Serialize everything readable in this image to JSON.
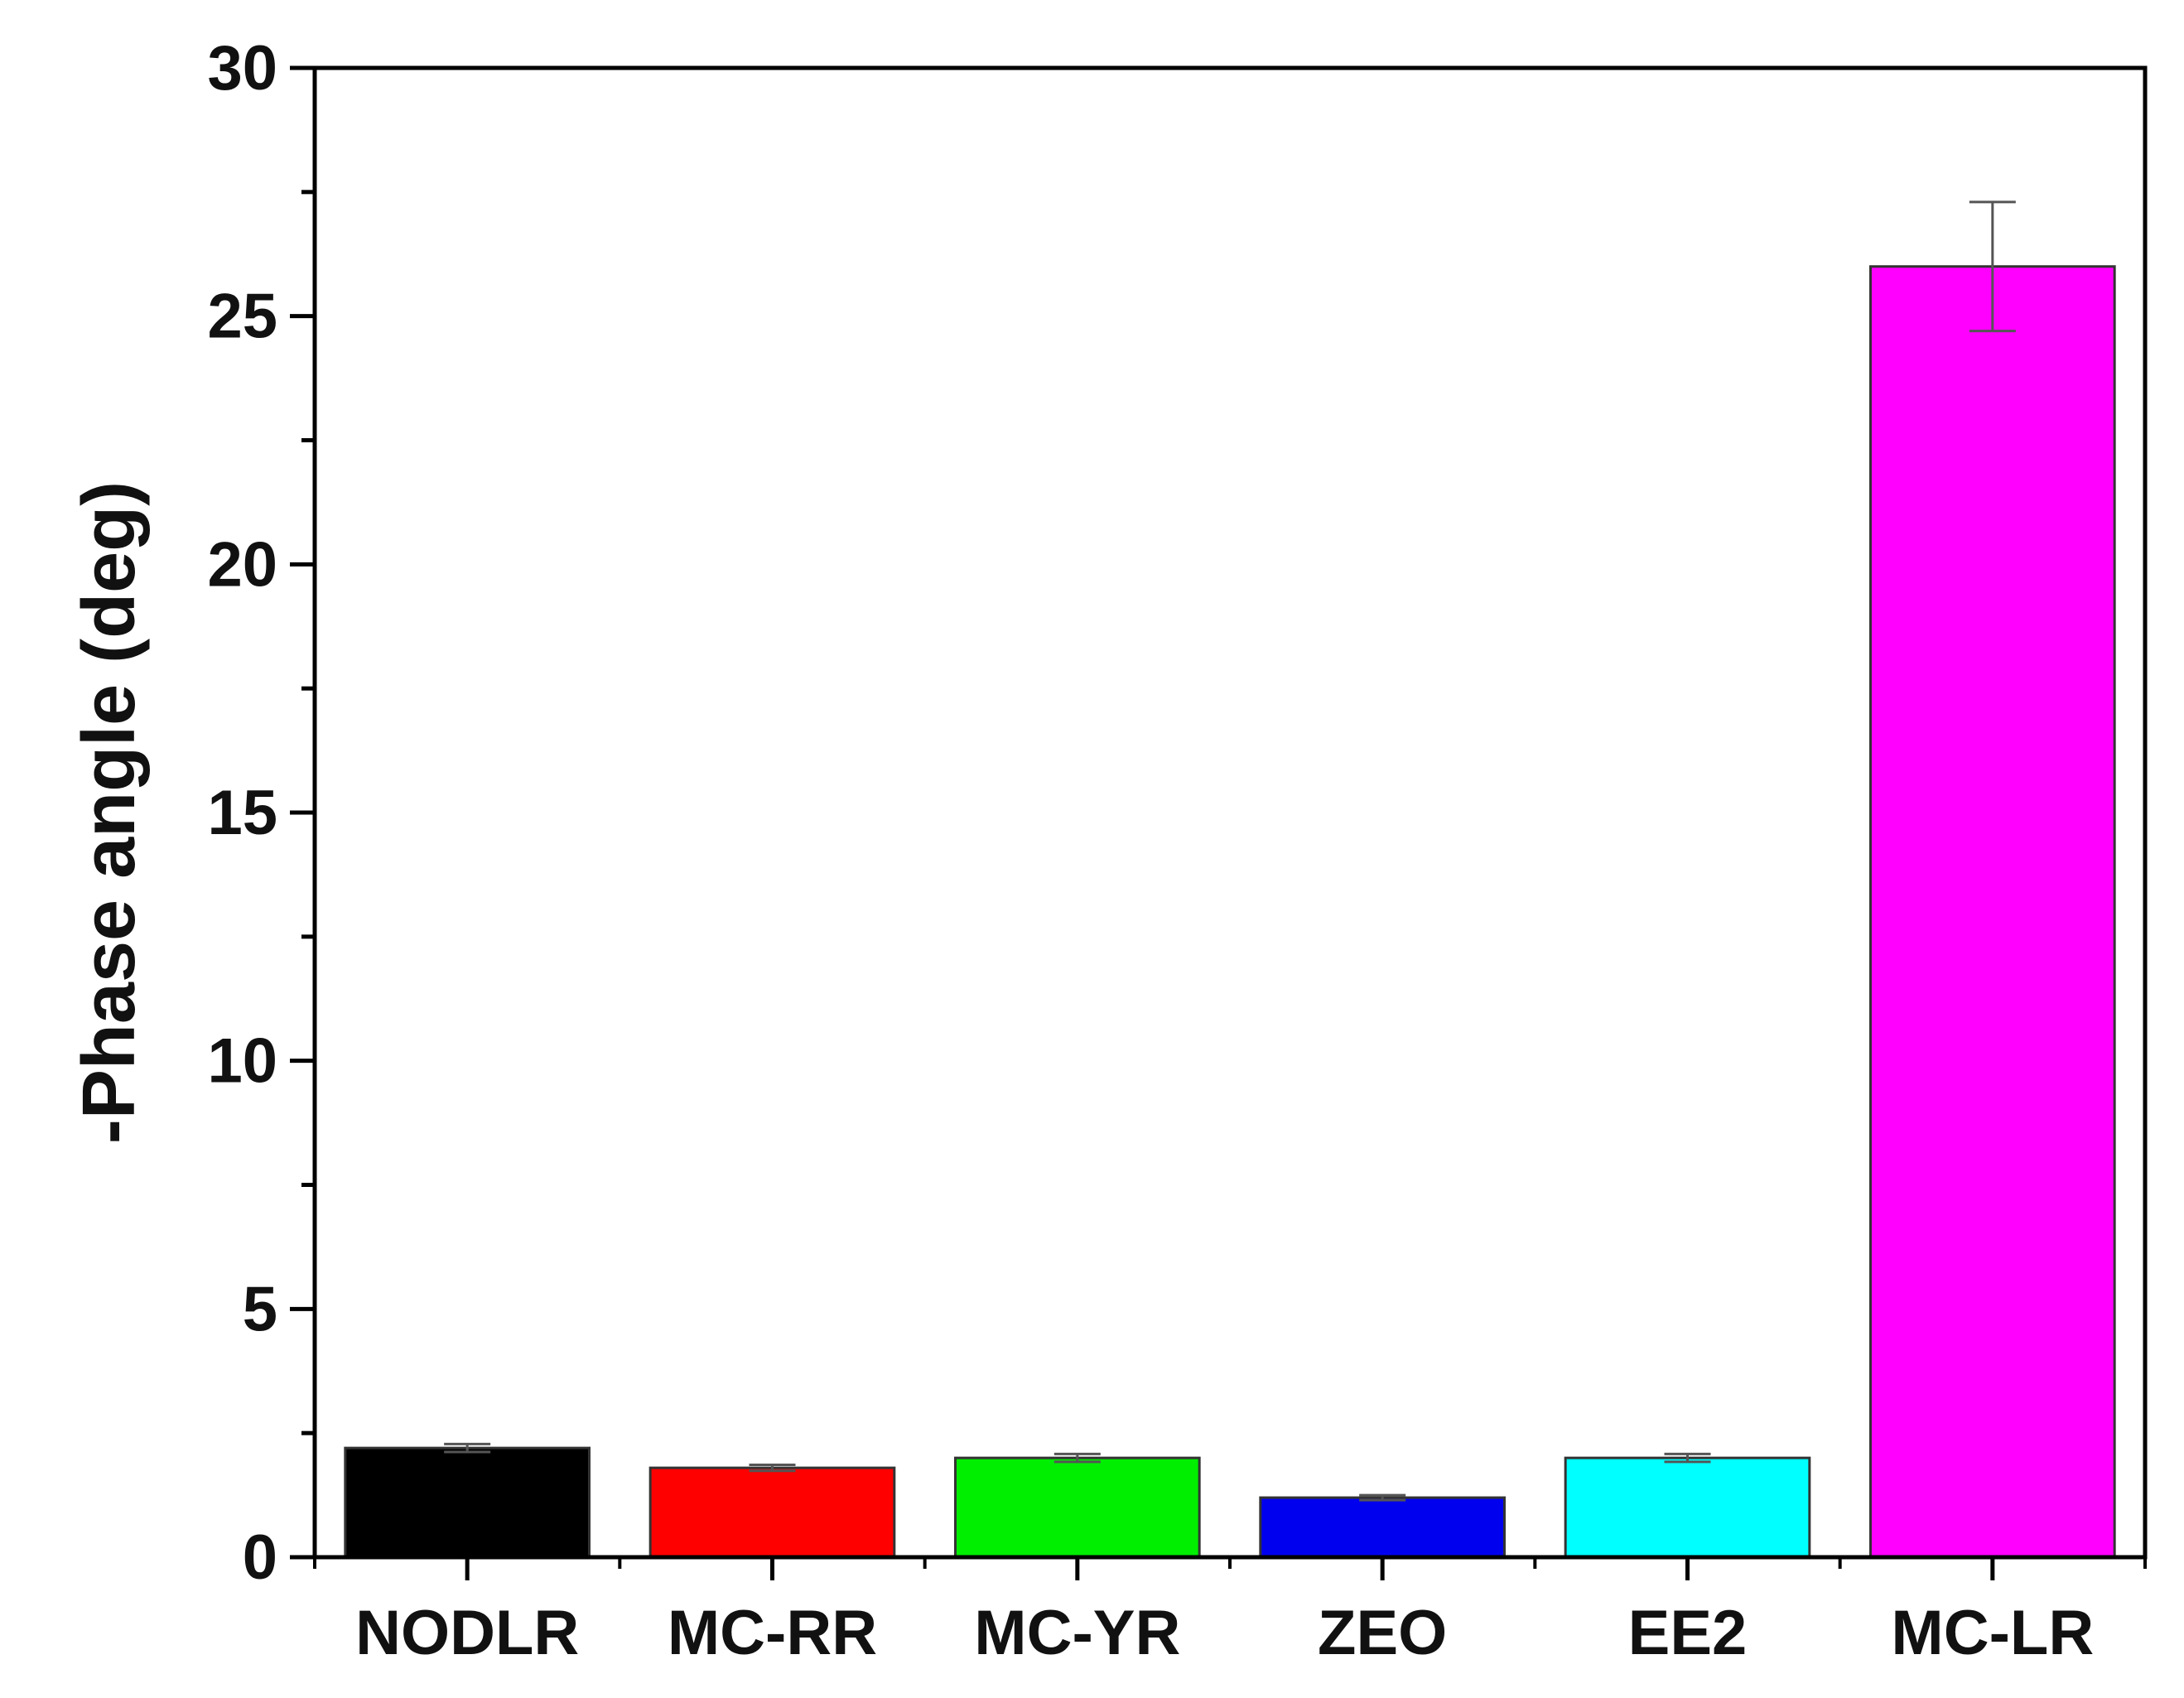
{
  "chart_data": {
    "type": "bar",
    "categories": [
      "NODLR",
      "MC-RR",
      "MC-YR",
      "ZEO",
      "EE2",
      "MC-LR"
    ],
    "values": [
      2.2,
      1.8,
      2.0,
      1.2,
      2.0,
      26.0
    ],
    "errors": [
      0.08,
      0.06,
      0.08,
      0.05,
      0.08,
      1.3
    ],
    "colors": [
      "#000000",
      "#ff0000",
      "#00ee00",
      "#0000ee",
      "#00ffff",
      "#ff00ff"
    ],
    "title": "",
    "xlabel": "",
    "ylabel": "-Phase angle (deg)",
    "ylim": [
      0,
      30
    ],
    "yticks": [
      0,
      5,
      10,
      15,
      20,
      25,
      30
    ],
    "grid": false,
    "legend": "none"
  }
}
